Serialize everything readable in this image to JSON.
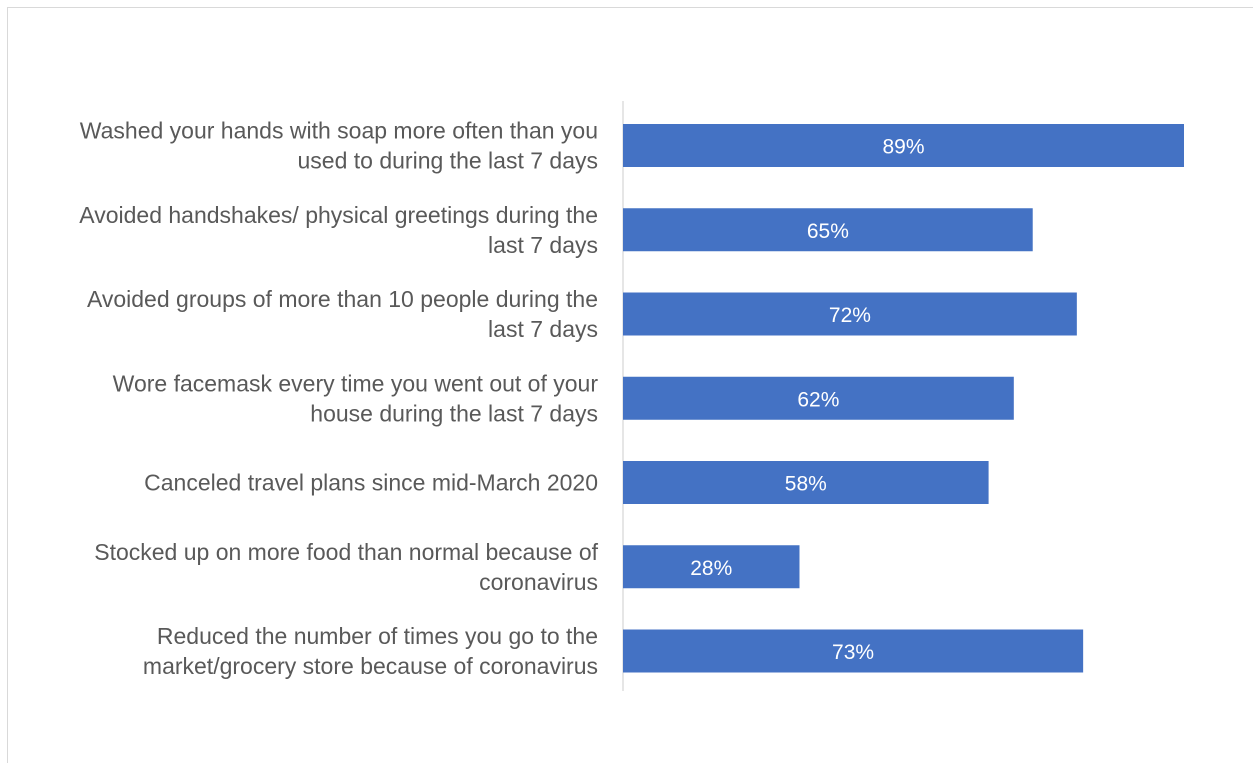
{
  "chart_data": {
    "type": "bar",
    "orientation": "horizontal",
    "categories": [
      [
        "Washed your hands with soap more often than you",
        "used to during the last 7 days"
      ],
      [
        "Avoided handshakes/ physical greetings during the",
        "last 7 days"
      ],
      [
        "Avoided groups of more than 10 people during the",
        "last 7 days"
      ],
      [
        "Wore facemask every time you went out of your",
        "house during the last 7 days"
      ],
      [
        "Canceled travel plans since mid-March 2020"
      ],
      [
        "Stocked up on more food than normal because of",
        "coronavirus"
      ],
      [
        "Reduced the number of times you go to the",
        "market/grocery store because of coronavirus"
      ]
    ],
    "values": [
      89,
      65,
      72,
      62,
      58,
      28,
      73
    ],
    "data_labels": [
      "89%",
      "65%",
      "72%",
      "62%",
      "58%",
      "28%",
      "73%"
    ],
    "xlim": [
      0,
      100
    ],
    "grid": false,
    "legend": "none",
    "colors": {
      "bar": "#4472C4",
      "axis": "#d9d9d9",
      "label": "#595959",
      "data_label": "#ffffff"
    }
  }
}
